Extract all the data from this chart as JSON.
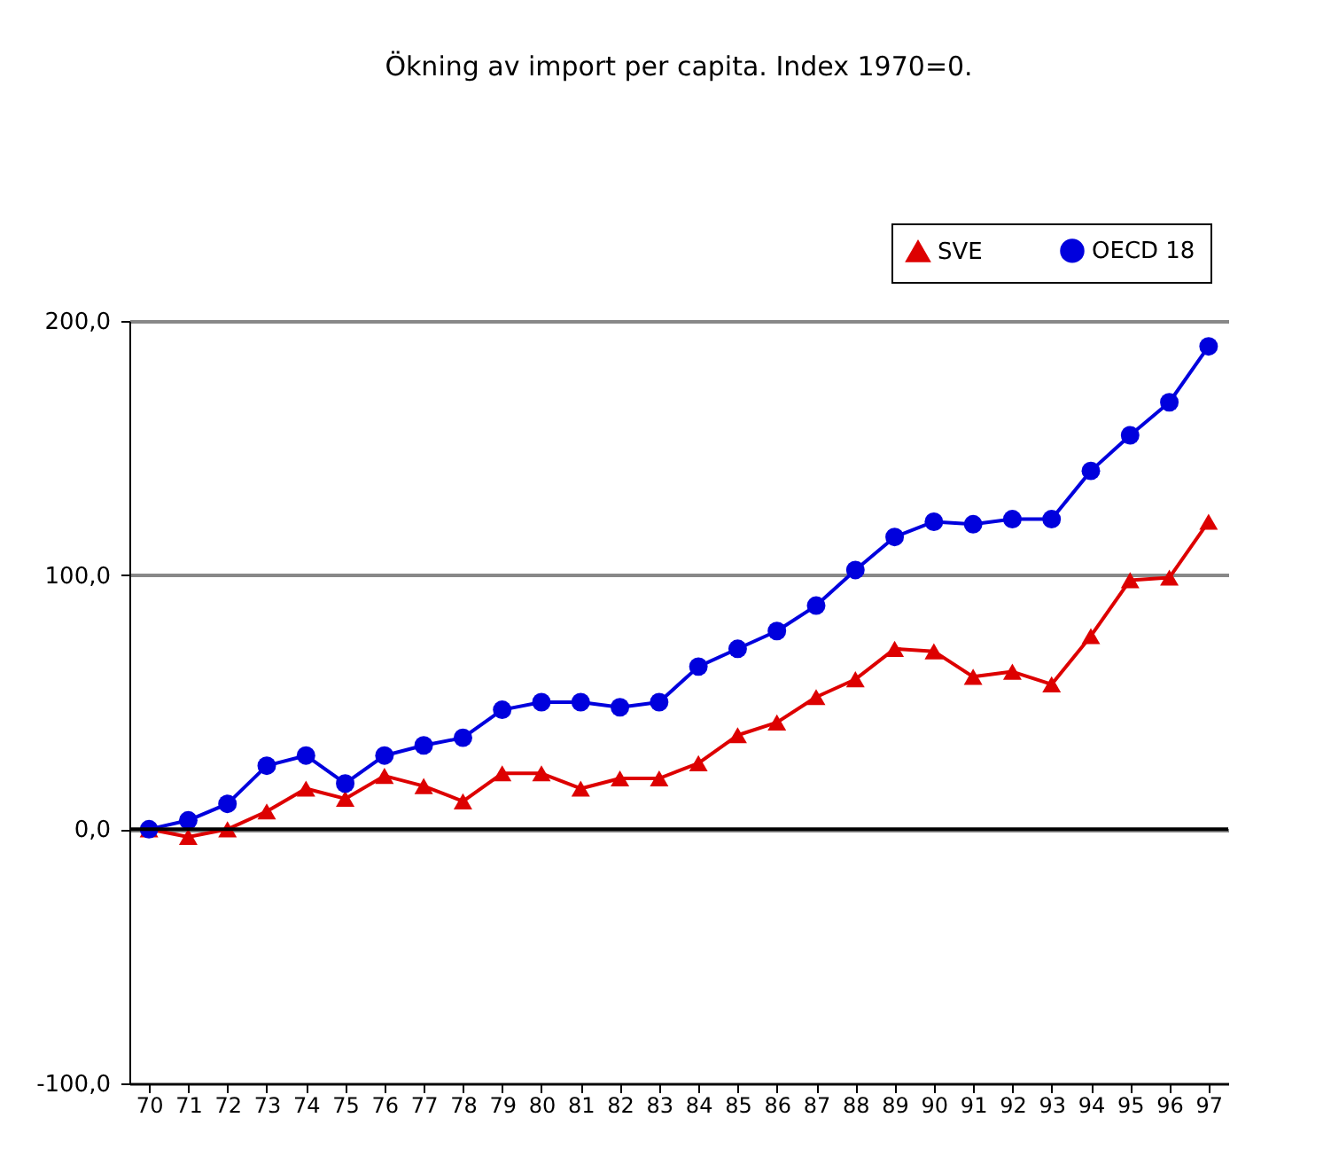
{
  "chart_data": {
    "type": "line",
    "title": "Ökning av import per capita. Index 1970=0.",
    "categories": [
      "70",
      "71",
      "72",
      "73",
      "74",
      "75",
      "76",
      "77",
      "78",
      "79",
      "80",
      "81",
      "82",
      "83",
      "84",
      "85",
      "86",
      "87",
      "88",
      "89",
      "90",
      "91",
      "92",
      "93",
      "94",
      "95",
      "96",
      "97"
    ],
    "series": [
      {
        "name": "SVE",
        "color": "#dd0000",
        "marker": "triangle",
        "values": [
          0,
          -3,
          0,
          7,
          16,
          12,
          21,
          17,
          11,
          22,
          22,
          16,
          20,
          20,
          26,
          37,
          42,
          52,
          59,
          71,
          70,
          60,
          62,
          57,
          76,
          98,
          99,
          121
        ]
      },
      {
        "name": "OECD 18",
        "color": "#0000dd",
        "marker": "circle",
        "values": [
          0,
          3.5,
          10,
          25,
          29,
          18,
          29,
          33,
          36,
          47,
          50,
          50,
          48,
          50,
          64,
          71,
          78,
          88,
          102,
          115,
          121,
          120,
          122,
          122,
          141,
          155,
          168,
          190
        ]
      }
    ],
    "ylim": [
      -100,
      200
    ],
    "yticks": [
      {
        "value": -100,
        "label": "-100,0"
      },
      {
        "value": 0,
        "label": "0,0"
      },
      {
        "value": 100,
        "label": "100,0"
      },
      {
        "value": 200,
        "label": "200,0"
      }
    ],
    "ref_lines": [
      {
        "axis": "y",
        "value": 0,
        "label": null,
        "color": "#000000"
      }
    ],
    "grid": "y",
    "legend": "top right",
    "line_style": "solid"
  }
}
